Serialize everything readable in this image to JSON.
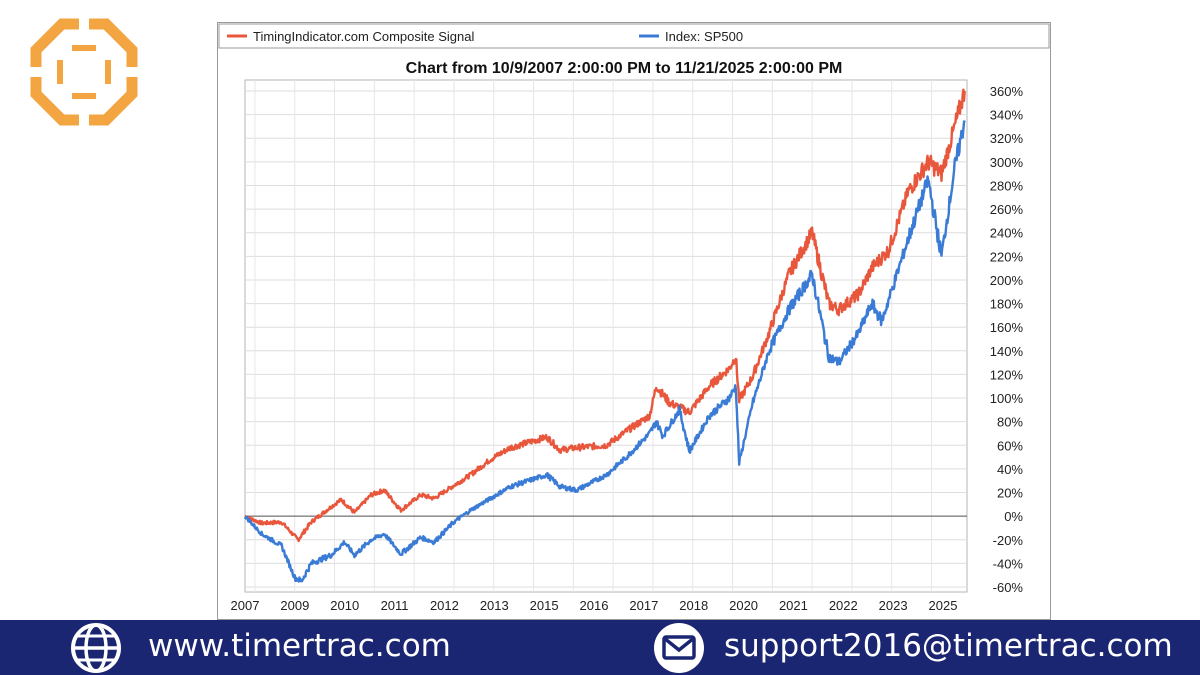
{
  "chart_data": {
    "type": "line",
    "title": "Chart from 10/9/2007 2:00:00 PM to 11/21/2025 2:00:00 PM",
    "xlabel": "",
    "ylabel": "",
    "x_ticks": [
      "2007",
      "2009",
      "2010",
      "2011",
      "2012",
      "2013",
      "2015",
      "2016",
      "2017",
      "2018",
      "2020",
      "2021",
      "2022",
      "2023",
      "2025"
    ],
    "y_ticks": [
      "-60%",
      "-40%",
      "-20%",
      "0%",
      "20%",
      "40%",
      "60%",
      "80%",
      "100%",
      "120%",
      "140%",
      "160%",
      "180%",
      "200%",
      "220%",
      "240%",
      "260%",
      "280%",
      "300%",
      "320%",
      "340%",
      "360%"
    ],
    "ylim": [
      -60,
      365
    ],
    "grid": true,
    "legend_position": "top",
    "series": [
      {
        "name": "TimingIndicator.com Composite Signal",
        "color": "#e8573c",
        "points": [
          [
            "2007-10",
            0
          ],
          [
            "2008-03",
            -6
          ],
          [
            "2008-09",
            -5
          ],
          [
            "2009-02",
            -20
          ],
          [
            "2009-06",
            -5
          ],
          [
            "2009-12",
            8
          ],
          [
            "2010-03",
            14
          ],
          [
            "2010-07",
            3
          ],
          [
            "2010-12",
            18
          ],
          [
            "2011-04",
            22
          ],
          [
            "2011-09",
            5
          ],
          [
            "2012-03",
            18
          ],
          [
            "2012-07",
            15
          ],
          [
            "2013-01",
            26
          ],
          [
            "2013-06",
            35
          ],
          [
            "2013-12",
            48
          ],
          [
            "2014-06",
            58
          ],
          [
            "2015-05",
            67
          ],
          [
            "2015-09",
            56
          ],
          [
            "2016-02",
            58
          ],
          [
            "2016-11",
            60
          ],
          [
            "2017-05",
            72
          ],
          [
            "2017-12",
            85
          ],
          [
            "2018-02",
            110
          ],
          [
            "2018-06",
            96
          ],
          [
            "2018-12",
            88
          ],
          [
            "2019-06",
            110
          ],
          [
            "2019-12",
            125
          ],
          [
            "2020-02",
            135
          ],
          [
            "2020-03",
            98
          ],
          [
            "2020-07",
            118
          ],
          [
            "2020-12",
            155
          ],
          [
            "2021-06",
            205
          ],
          [
            "2021-12",
            235
          ],
          [
            "2022-01",
            240
          ],
          [
            "2022-06",
            180
          ],
          [
            "2022-09",
            175
          ],
          [
            "2023-03",
            188
          ],
          [
            "2023-07",
            210
          ],
          [
            "2023-12",
            225
          ],
          [
            "2024-06",
            275
          ],
          [
            "2024-12",
            300
          ],
          [
            "2025-04",
            290
          ],
          [
            "2025-08",
            330
          ],
          [
            "2025-11",
            360
          ]
        ]
      },
      {
        "name": "Index: SP500",
        "color": "#3a7bd5",
        "points": [
          [
            "2007-10",
            0
          ],
          [
            "2008-03",
            -15
          ],
          [
            "2008-09",
            -25
          ],
          [
            "2009-01",
            -52
          ],
          [
            "2009-03",
            -55
          ],
          [
            "2009-06",
            -40
          ],
          [
            "2009-12",
            -33
          ],
          [
            "2010-04",
            -22
          ],
          [
            "2010-07",
            -33
          ],
          [
            "2010-12",
            -20
          ],
          [
            "2011-04",
            -15
          ],
          [
            "2011-09",
            -32
          ],
          [
            "2012-03",
            -18
          ],
          [
            "2012-07",
            -22
          ],
          [
            "2013-01",
            -5
          ],
          [
            "2013-06",
            5
          ],
          [
            "2013-12",
            15
          ],
          [
            "2014-06",
            25
          ],
          [
            "2015-05",
            35
          ],
          [
            "2015-09",
            25
          ],
          [
            "2016-02",
            22
          ],
          [
            "2016-11",
            35
          ],
          [
            "2017-05",
            50
          ],
          [
            "2017-12",
            70
          ],
          [
            "2018-02",
            80
          ],
          [
            "2018-04",
            68
          ],
          [
            "2018-09",
            90
          ],
          [
            "2018-12",
            55
          ],
          [
            "2019-06",
            85
          ],
          [
            "2019-12",
            100
          ],
          [
            "2020-02",
            110
          ],
          [
            "2020-03",
            45
          ],
          [
            "2020-07",
            95
          ],
          [
            "2020-12",
            140
          ],
          [
            "2021-06",
            175
          ],
          [
            "2021-12",
            200
          ],
          [
            "2022-01",
            205
          ],
          [
            "2022-06",
            135
          ],
          [
            "2022-09",
            130
          ],
          [
            "2023-03",
            155
          ],
          [
            "2023-07",
            180
          ],
          [
            "2023-10",
            165
          ],
          [
            "2024-06",
            235
          ],
          [
            "2024-12",
            285
          ],
          [
            "2025-04",
            220
          ],
          [
            "2025-08",
            295
          ],
          [
            "2025-11",
            335
          ]
        ]
      }
    ]
  },
  "footer": {
    "website": "www.timertrac.com",
    "email": "support2016@timertrac.com",
    "background_color": "#1b2672"
  },
  "icons": {
    "logo": "cross-hex-logo-icon",
    "website": "globe-icon",
    "email": "envelope-icon"
  }
}
